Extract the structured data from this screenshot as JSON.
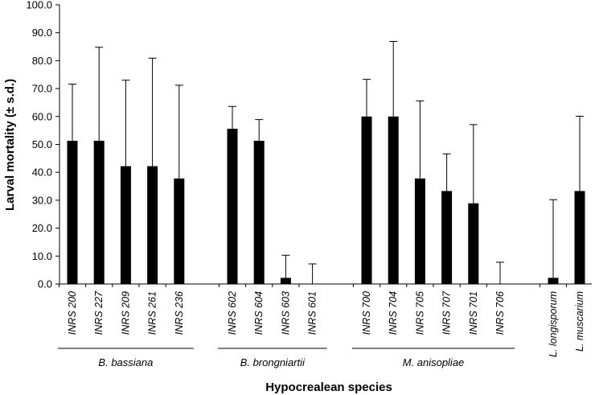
{
  "chart_data": {
    "type": "bar",
    "ylabel": "Larval mortality (± s.d.)",
    "xlabel": "Hypocrealean species",
    "ylim": [
      0,
      100
    ],
    "yticks": [
      "0.0",
      "10.0",
      "20.0",
      "30.0",
      "40.0",
      "50.0",
      "60.0",
      "70.0",
      "80.0",
      "90.0",
      "100.0"
    ],
    "grid": false,
    "bar_color": "#000000",
    "groups": [
      {
        "label": "B. bassiana",
        "bars": [
          {
            "category": "INRS 200",
            "value": 51.3,
            "sd": 20.3
          },
          {
            "category": "INRS 227",
            "value": 51.3,
            "sd": 33.5
          },
          {
            "category": "INRS 209",
            "value": 42.2,
            "sd": 30.8
          },
          {
            "category": "INRS 261",
            "value": 42.2,
            "sd": 38.7
          },
          {
            "category": "INRS 236",
            "value": 37.8,
            "sd": 33.4
          }
        ]
      },
      {
        "label": "B. brongniartii",
        "bars": [
          {
            "category": "INRS 602",
            "value": 55.6,
            "sd": 8.0
          },
          {
            "category": "INRS 604",
            "value": 51.3,
            "sd": 7.6
          },
          {
            "category": "INRS 603",
            "value": 2.2,
            "sd": 8.1
          },
          {
            "category": "INRS 601",
            "value": 0.0,
            "sd": 7.2
          }
        ]
      },
      {
        "label": "M. anisopliae",
        "bars": [
          {
            "category": "INRS 700",
            "value": 60.0,
            "sd": 13.3
          },
          {
            "category": "INRS 704",
            "value": 60.0,
            "sd": 26.9
          },
          {
            "category": "INRS 705",
            "value": 37.8,
            "sd": 27.8
          },
          {
            "category": "INRS 707",
            "value": 33.3,
            "sd": 13.3
          },
          {
            "category": "INRS 701",
            "value": 28.9,
            "sd": 28.2
          },
          {
            "category": "INRS 706",
            "value": 0.0,
            "sd": 7.8
          }
        ]
      },
      {
        "label": "",
        "bars": [
          {
            "category": "L. longisporum",
            "value": 2.2,
            "sd": 28.0
          }
        ]
      },
      {
        "label": "",
        "bars": [
          {
            "category": "L. muscarium",
            "value": 33.3,
            "sd": 26.8
          }
        ]
      }
    ]
  }
}
